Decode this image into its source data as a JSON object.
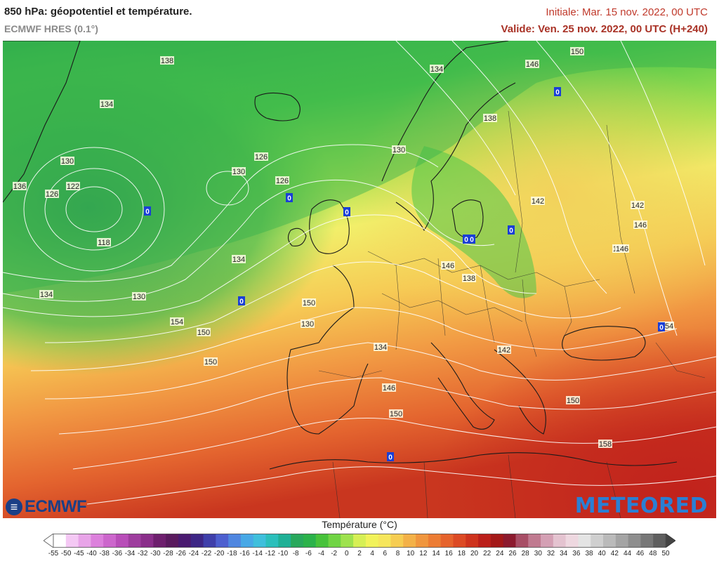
{
  "header": {
    "title": "850 hPa: géopotentiel et température.",
    "subtitle": "ECMWF HRES (0.1°)",
    "initial": "Initiale: Mar. 15 nov. 2022, 00 UTC",
    "valid": "Valide: Ven. 25 nov. 2022, 00 UTC (H+240)"
  },
  "map": {
    "contour_labels": [
      "138",
      "134",
      "150",
      "146",
      "134",
      "130",
      "126",
      "130",
      "126",
      "138",
      "122",
      "136",
      "126",
      "118",
      "130",
      "134",
      "134",
      "130",
      "142",
      "146",
      "150",
      "142",
      "154",
      "150",
      "146",
      "138",
      "130",
      "134",
      "142",
      "138",
      "142",
      "146",
      "150",
      "146",
      "150",
      "154",
      "150",
      "158",
      "0",
      "0",
      "0",
      "0",
      "0",
      "0",
      "0",
      "0",
      "0",
      "0"
    ],
    "zero_label": "0"
  },
  "logos": {
    "ecmwf": "ECMWF",
    "meteored": "METEORED"
  },
  "legend": {
    "title": "Température (°C)",
    "ticks": [
      "-55",
      "-50",
      "-45",
      "-40",
      "-38",
      "-36",
      "-34",
      "-32",
      "-30",
      "-28",
      "-26",
      "-24",
      "-22",
      "-20",
      "-18",
      "-16",
      "-14",
      "-12",
      "-10",
      "-8",
      "-6",
      "-4",
      "-2",
      "0",
      "2",
      "4",
      "6",
      "8",
      "10",
      "12",
      "14",
      "16",
      "18",
      "20",
      "22",
      "24",
      "26",
      "28",
      "30",
      "32",
      "34",
      "36",
      "38",
      "40",
      "42",
      "44",
      "46",
      "48",
      "50"
    ],
    "colors": [
      "#ffffff",
      "#f4c8f4",
      "#e8a4e8",
      "#dc80dc",
      "#cc66cc",
      "#b84db8",
      "#9e3d9e",
      "#8a2e8a",
      "#6e1f6e",
      "#5a1a5e",
      "#4a1a70",
      "#3d2685",
      "#3f3faa",
      "#4d5fcf",
      "#4f86e0",
      "#47a8e6",
      "#3fbfdc",
      "#2bbfbb",
      "#1fb096",
      "#28a85c",
      "#2bb24a",
      "#47c23a",
      "#70d444",
      "#9ee24e",
      "#d6ef55",
      "#f1f25a",
      "#f6e65c",
      "#f6cd52",
      "#f3b148",
      "#f0963e",
      "#ec7c34",
      "#e6632c",
      "#dc4a24",
      "#ce331d",
      "#bb1f1a",
      "#a31818",
      "#8c1a2e",
      "#a84e66",
      "#c07a90",
      "#d4a0b4",
      "#e4c3d0",
      "#eed8e0",
      "#e4e4e4",
      "#cfcfcf",
      "#bababa",
      "#a4a4a4",
      "#8e8e8e",
      "#777777",
      "#5f5f5f"
    ]
  }
}
